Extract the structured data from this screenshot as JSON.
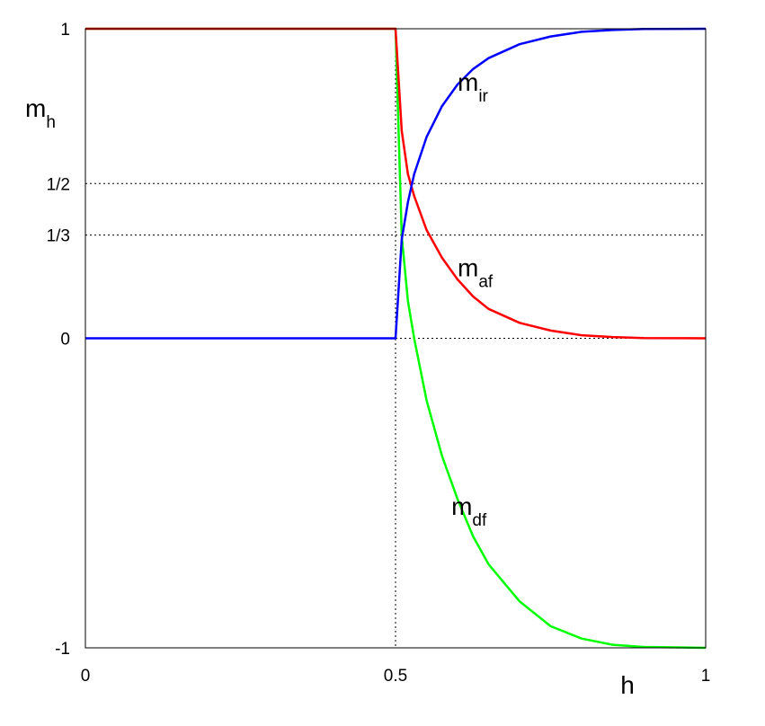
{
  "chart_data": {
    "type": "line",
    "xlabel": "h",
    "ylabel": {
      "base": "m",
      "sub": "h"
    },
    "xlim": [
      0,
      1
    ],
    "ylim": [
      -1,
      1
    ],
    "x_ticks": [
      {
        "value": 0,
        "label": "0"
      },
      {
        "value": 0.5,
        "label": "0.5"
      },
      {
        "value": 1,
        "label": "1"
      }
    ],
    "y_ticks": [
      {
        "value": -1,
        "label": "-1"
      },
      {
        "value": 0,
        "label": "0"
      },
      {
        "value": 0.3333,
        "label": "1/3"
      },
      {
        "value": 0.5,
        "label": "1/2"
      },
      {
        "value": 1,
        "label": "1"
      }
    ],
    "grid": {
      "horizontal_dotted_at": [
        0,
        0.3333,
        0.5,
        1
      ],
      "vertical_dotted_at": [
        0.5
      ]
    },
    "series": [
      {
        "name": "m_ir",
        "base": "m",
        "sub": "ir",
        "color": "#0000ff",
        "label_anchor": [
          0.6,
          0.8
        ],
        "points": [
          [
            0,
            0
          ],
          [
            0.5,
            0
          ],
          [
            0.51,
            0.32
          ],
          [
            0.52,
            0.44
          ],
          [
            0.53,
            0.53
          ],
          [
            0.55,
            0.65
          ],
          [
            0.575,
            0.75
          ],
          [
            0.6,
            0.82
          ],
          [
            0.625,
            0.87
          ],
          [
            0.65,
            0.905
          ],
          [
            0.7,
            0.95
          ],
          [
            0.75,
            0.975
          ],
          [
            0.8,
            0.99
          ],
          [
            0.85,
            0.996
          ],
          [
            0.9,
            0.999
          ],
          [
            1,
            1
          ]
        ]
      },
      {
        "name": "m_af",
        "base": "m",
        "sub": "af",
        "color": "#ff0000",
        "label_anchor": [
          0.6,
          0.2
        ],
        "points": [
          [
            0,
            1
          ],
          [
            0.5,
            1
          ],
          [
            0.51,
            0.67
          ],
          [
            0.52,
            0.53
          ],
          [
            0.53,
            0.46
          ],
          [
            0.55,
            0.35
          ],
          [
            0.575,
            0.26
          ],
          [
            0.6,
            0.19
          ],
          [
            0.625,
            0.135
          ],
          [
            0.65,
            0.095
          ],
          [
            0.7,
            0.05
          ],
          [
            0.75,
            0.025
          ],
          [
            0.8,
            0.01
          ],
          [
            0.85,
            0.004
          ],
          [
            0.9,
            0.001
          ],
          [
            1,
            0
          ]
        ]
      },
      {
        "name": "m_df",
        "base": "m",
        "sub": "df",
        "color": "#00ff00",
        "label_anchor": [
          0.59,
          -0.57
        ],
        "points": [
          [
            0,
            1
          ],
          [
            0.5,
            1
          ],
          [
            0.51,
            0.33
          ],
          [
            0.52,
            0.12
          ],
          [
            0.53,
            0
          ],
          [
            0.55,
            -0.2
          ],
          [
            0.575,
            -0.38
          ],
          [
            0.6,
            -0.52
          ],
          [
            0.625,
            -0.64
          ],
          [
            0.65,
            -0.73
          ],
          [
            0.7,
            -0.85
          ],
          [
            0.75,
            -0.93
          ],
          [
            0.8,
            -0.97
          ],
          [
            0.85,
            -0.99
          ],
          [
            0.9,
            -0.997
          ],
          [
            1,
            -1
          ]
        ]
      }
    ]
  }
}
